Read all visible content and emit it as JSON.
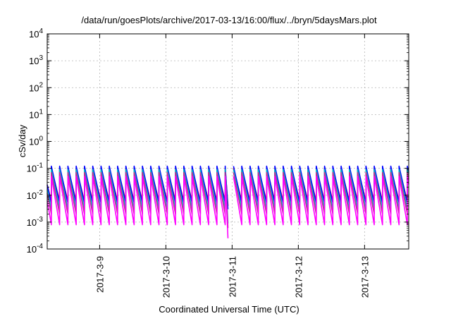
{
  "chart_data": {
    "type": "line",
    "title": "/data/run/goesPlots/archive/2017-03-13/16:00/flux/../bryn/5daysMars.plot",
    "xlabel": "Coordinated Universal Time (UTC)",
    "ylabel": "cSv/day",
    "x_range": [
      "2017-03-08T05:00",
      "2017-03-13T16:00"
    ],
    "x_ticks": [
      "2017-3-9",
      "2017-3-10",
      "2017-3-11",
      "2017-3-12",
      "2017-3-13"
    ],
    "y_scale": "log",
    "ylim": [
      0.0001,
      10000
    ],
    "y_ticks": [
      {
        "value": 0.0001,
        "base": "10",
        "exp": "-4"
      },
      {
        "value": 0.001,
        "base": "10",
        "exp": "-3"
      },
      {
        "value": 0.01,
        "base": "10",
        "exp": "-2"
      },
      {
        "value": 0.1,
        "base": "10",
        "exp": "-1"
      },
      {
        "value": 1,
        "base": "10",
        "exp": "0"
      },
      {
        "value": 10,
        "base": "10",
        "exp": "1"
      },
      {
        "value": 100,
        "base": "10",
        "exp": "2"
      },
      {
        "value": 1000,
        "base": "10",
        "exp": "3"
      },
      {
        "value": 10000,
        "base": "10",
        "exp": "4"
      }
    ],
    "grid": true,
    "pattern": {
      "period_hours": 3,
      "phase_hours": 1.5,
      "gap_start": "2017-03-10T22:30",
      "gap_end": "2017-03-11T00:30"
    },
    "series": [
      {
        "color": "#ff0000",
        "peak": 0.1,
        "trough": 0.006,
        "dip": 0.004
      },
      {
        "color": "#0000ff",
        "peak": 0.12,
        "trough": 0.005,
        "dip": 0.003
      },
      {
        "color": "#00bfbf",
        "peak": 0.09,
        "trough": 0.003,
        "dip": 0.0009
      },
      {
        "color": "#c03090",
        "peak": 0.07,
        "trough": 0.002,
        "dip": 0.0006
      },
      {
        "color": "#ff00ff",
        "peak": 0.05,
        "trough": 0.0008,
        "dip": 0.00025
      }
    ]
  }
}
